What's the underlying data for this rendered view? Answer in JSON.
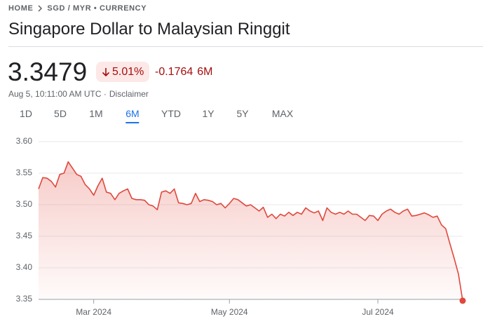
{
  "breadcrumb": {
    "home": "HOME",
    "path": "SGD / MYR • CURRENCY"
  },
  "title": "Singapore Dollar to Malaysian Ringgit",
  "price": "3.3479",
  "change_percent": "5.01%",
  "change": "-0.1764",
  "change_period": "6M",
  "timestamp": "Aug 5, 10:11:00 AM UTC ·",
  "disclaimer": "Disclaimer",
  "ranges": [
    "1D",
    "5D",
    "1M",
    "6M",
    "YTD",
    "1Y",
    "5Y",
    "MAX"
  ],
  "chart_data": {
    "type": "line",
    "color": "#e0483c",
    "grid": true,
    "categories": [
      null,
      null,
      null,
      null,
      null,
      null,
      null,
      null,
      null,
      null,
      null,
      null,
      null,
      "Mar 2024",
      null,
      null,
      null,
      null,
      null,
      null,
      null,
      null,
      null,
      null,
      null,
      null,
      null,
      null,
      null,
      null,
      null,
      null,
      null,
      null,
      null,
      null,
      null,
      null,
      null,
      null,
      null,
      null,
      null,
      null,
      null,
      "May 2024",
      null,
      null,
      null,
      null,
      null,
      null,
      null,
      null,
      null,
      null,
      null,
      null,
      null,
      null,
      null,
      null,
      null,
      null,
      null,
      null,
      null,
      null,
      null,
      null,
      null,
      null,
      null,
      null,
      null,
      null,
      null,
      null,
      null,
      null,
      "Jul 2024",
      null,
      null,
      null,
      null,
      null,
      null,
      null,
      null,
      null,
      null,
      null,
      null,
      null,
      null,
      null,
      null,
      null,
      null,
      null,
      null
    ],
    "values": [
      3.525,
      3.543,
      3.542,
      3.537,
      3.528,
      3.548,
      3.55,
      3.568,
      3.558,
      3.548,
      3.545,
      3.532,
      3.525,
      3.515,
      3.53,
      3.542,
      3.52,
      3.518,
      3.508,
      3.518,
      3.522,
      3.525,
      3.51,
      3.508,
      3.508,
      3.507,
      3.5,
      3.498,
      3.492,
      3.52,
      3.522,
      3.518,
      3.525,
      3.503,
      3.502,
      3.5,
      3.502,
      3.518,
      3.505,
      3.508,
      3.507,
      3.505,
      3.5,
      3.502,
      3.495,
      3.502,
      3.51,
      3.508,
      3.503,
      3.498,
      3.5,
      3.495,
      3.49,
      3.496,
      3.48,
      3.485,
      3.478,
      3.485,
      3.482,
      3.488,
      3.483,
      3.488,
      3.485,
      3.495,
      3.49,
      3.487,
      3.49,
      3.475,
      3.495,
      3.488,
      3.485,
      3.488,
      3.485,
      3.49,
      3.485,
      3.485,
      3.48,
      3.475,
      3.483,
      3.482,
      3.475,
      3.485,
      3.49,
      3.493,
      3.488,
      3.485,
      3.49,
      3.493,
      3.482,
      3.483,
      3.485,
      3.487,
      3.484,
      3.48,
      3.482,
      3.468,
      3.462,
      3.438,
      3.415,
      3.39,
      3.3479
    ],
    "ylim": [
      3.35,
      3.6
    ],
    "yticks": [
      3.35,
      {
        "value": 3.4,
        "label": "3.40"
      },
      3.45,
      {
        "value": 3.5,
        "label": "3.50"
      },
      3.55,
      {
        "value": 3.6,
        "label": "3.60"
      }
    ]
  }
}
